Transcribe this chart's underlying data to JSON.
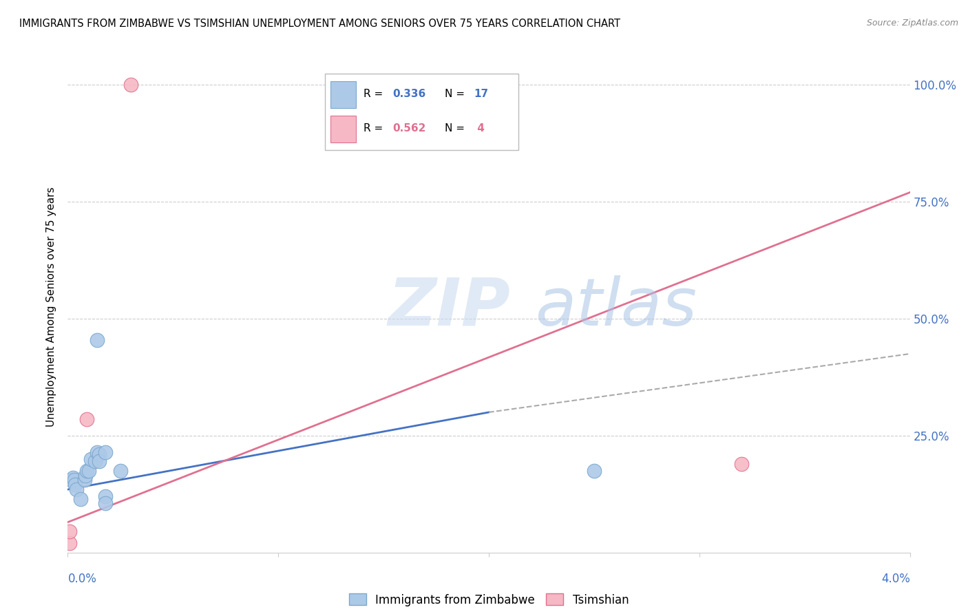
{
  "title": "IMMIGRANTS FROM ZIMBABWE VS TSIMSHIAN UNEMPLOYMENT AMONG SENIORS OVER 75 YEARS CORRELATION CHART",
  "source": "Source: ZipAtlas.com",
  "ylabel": "Unemployment Among Seniors over 75 years",
  "x_range": [
    0.0,
    0.04
  ],
  "y_range": [
    0.0,
    1.05
  ],
  "zimbabwe_color": "#adc9e8",
  "zimbabwe_edge": "#7ba7cc",
  "tsimshian_color": "#f5b8c4",
  "tsimshian_edge": "#e07090",
  "line_blue": "#4472c4",
  "line_pink": "#e07090",
  "zimbabwe_points": [
    [
      0.00015,
      0.155
    ],
    [
      0.00025,
      0.16
    ],
    [
      0.0003,
      0.155
    ],
    [
      0.00035,
      0.145
    ],
    [
      0.0004,
      0.135
    ],
    [
      0.0006,
      0.115
    ],
    [
      0.0008,
      0.155
    ],
    [
      0.00085,
      0.165
    ],
    [
      0.0009,
      0.175
    ],
    [
      0.001,
      0.175
    ],
    [
      0.0011,
      0.2
    ],
    [
      0.0013,
      0.195
    ],
    [
      0.0014,
      0.215
    ],
    [
      0.0015,
      0.21
    ],
    [
      0.0015,
      0.195
    ],
    [
      0.0018,
      0.215
    ],
    [
      0.0018,
      0.12
    ],
    [
      0.0018,
      0.105
    ],
    [
      0.0014,
      0.455
    ],
    [
      0.0025,
      0.175
    ],
    [
      0.025,
      0.175
    ]
  ],
  "tsimshian_points": [
    [
      0.0001,
      0.02
    ],
    [
      0.0001,
      0.045
    ],
    [
      0.0009,
      0.285
    ],
    [
      0.003,
      1.0
    ],
    [
      0.032,
      0.19
    ]
  ],
  "blue_line_solid": [
    [
      0.0,
      0.135
    ],
    [
      0.02,
      0.3
    ]
  ],
  "blue_line_dashed": [
    [
      0.02,
      0.3
    ],
    [
      0.04,
      0.425
    ]
  ],
  "pink_line": [
    [
      0.0,
      0.065
    ],
    [
      0.04,
      0.77
    ]
  ],
  "dot_size": 220
}
